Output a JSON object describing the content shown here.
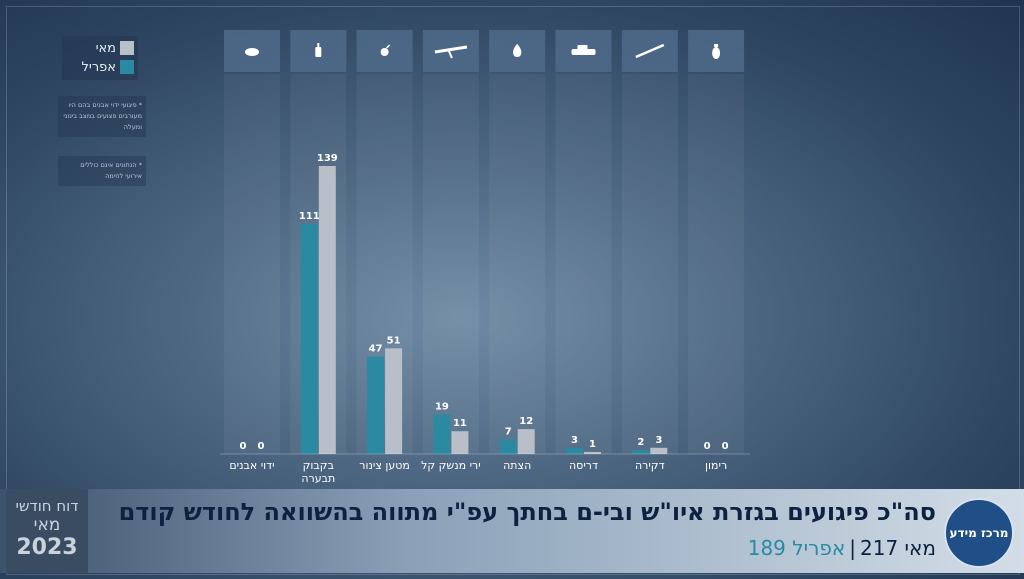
{
  "legend": {
    "may_label": "מאי",
    "april_label": "אפריל",
    "may_color": "#b9bfc8",
    "april_color": "#2b8aa2"
  },
  "notes": {
    "note1": "* פיגועי ידוי אבנים בהם היו מעורבים פצועים במצב בינוני ומעלה",
    "note2": "* הנתונים אינם כוללים אירועי לחימה"
  },
  "footer": {
    "title": "סה\"כ פיגועים בגזרת איו\"ש ובי-ם בחתך עפ\"י מתווה בהשוואה לחודש קודם",
    "may_total": "מאי 217",
    "separator": "|",
    "april_total": "אפריל 189",
    "report_line1": "דוח חודשי",
    "report_line2": "מאי",
    "report_year": "2023",
    "logo_text": "מרכז מידע"
  },
  "chart_data": {
    "type": "bar",
    "categories": [
      "ידוי אבנים",
      "בקבוק תבערה",
      "מטען צינור",
      "ירי מנשק קל",
      "הצתה",
      "דריסה",
      "דקירה",
      "רימון"
    ],
    "icons": [
      "stone-icon",
      "molotov-icon",
      "pipe-bomb-icon",
      "rifle-icon",
      "fire-icon",
      "car-icon",
      "knife-icon",
      "grenade-icon"
    ],
    "series": [
      {
        "name": "אפריל",
        "values": [
          0,
          111,
          47,
          19,
          7,
          3,
          2,
          0
        ],
        "color": "#2b8aa2"
      },
      {
        "name": "מאי",
        "values": [
          0,
          139,
          51,
          11,
          12,
          1,
          3,
          0
        ],
        "color": "#b9bfc8"
      }
    ],
    "ylim": [
      0,
      139
    ]
  }
}
